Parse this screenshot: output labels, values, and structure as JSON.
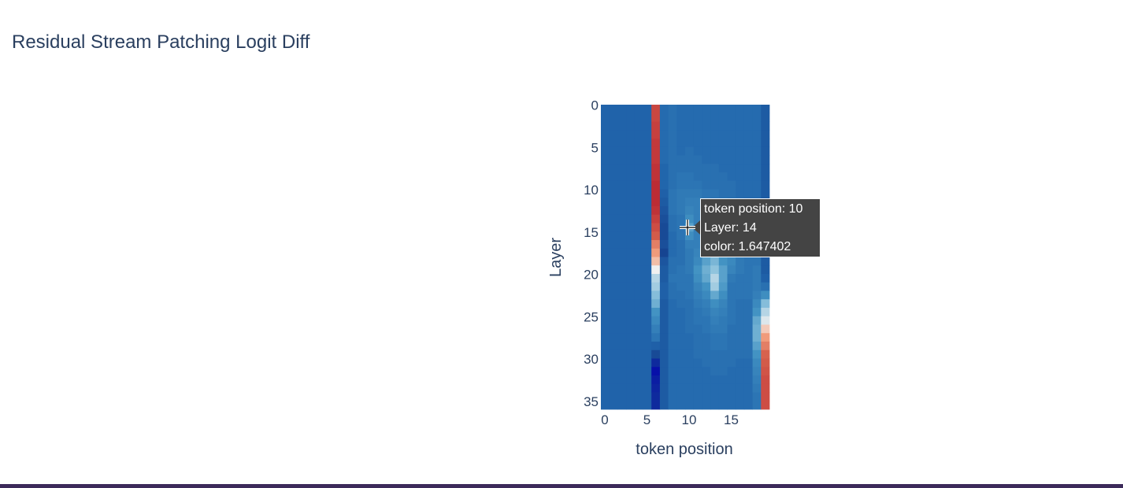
{
  "title": "Residual Stream Patching Logit Diff",
  "chart_data": {
    "type": "heatmap",
    "title": "Residual Stream Patching Logit Diff",
    "xlabel": "token position",
    "ylabel": "Layer",
    "x_range": [
      0,
      19
    ],
    "y_range": [
      0,
      35
    ],
    "x_ticks": [
      "0",
      "5",
      "10",
      "15"
    ],
    "y_ticks": [
      "0",
      "5",
      "10",
      "15",
      "20",
      "25",
      "30",
      "35"
    ],
    "colorscale": "RdBu (reversed)",
    "color_range": [
      -1.0,
      5.0
    ],
    "rows": 36,
    "cols": 20,
    "columns": [
      {
        "x": 6,
        "values": [
          4.3,
          4.3,
          4.4,
          4.4,
          4.5,
          4.5,
          4.5,
          4.6,
          4.6,
          4.7,
          4.7,
          4.7,
          4.6,
          4.4,
          4.2,
          4.0,
          3.6,
          3.3,
          3.0,
          2.6,
          2.3,
          2.2,
          2.0,
          1.8,
          1.4,
          1.2,
          1.0,
          0.8,
          0.4,
          0.0,
          -0.5,
          -0.9,
          -0.7,
          -0.6,
          -0.5,
          -0.5
        ]
      },
      {
        "x": 7,
        "values": [
          0.6,
          0.6,
          0.6,
          0.6,
          0.6,
          0.6,
          0.6,
          0.5,
          0.5,
          0.5,
          0.4,
          0.3,
          0.2,
          0.1,
          0.0,
          0.0,
          0.1,
          -0.1,
          0.2,
          0.3,
          0.3,
          0.4,
          0.4,
          0.3,
          0.3,
          0.3,
          0.3,
          0.3,
          0.3,
          0.3,
          0.3,
          0.3,
          0.3,
          0.3,
          0.3,
          0.3
        ]
      },
      {
        "x": 8,
        "values": [
          0.7,
          0.7,
          0.7,
          0.7,
          0.7,
          0.7,
          0.7,
          0.7,
          0.7,
          0.7,
          0.8,
          0.8,
          0.8,
          0.7,
          0.7,
          0.6,
          0.6,
          0.6,
          0.7,
          0.7,
          0.8,
          0.7,
          0.7,
          0.6,
          0.6,
          0.6,
          0.6,
          0.6,
          0.6,
          0.6,
          0.6,
          0.6,
          0.6,
          0.6,
          0.6,
          0.6
        ]
      },
      {
        "x": 9,
        "values": [
          0.6,
          0.6,
          0.6,
          0.6,
          0.6,
          0.6,
          0.7,
          0.7,
          0.8,
          0.8,
          0.9,
          0.9,
          0.9,
          0.8,
          0.8,
          0.8,
          0.7,
          0.7,
          0.7,
          0.8,
          0.8,
          0.8,
          0.7,
          0.7,
          0.6,
          0.6,
          0.6,
          0.6,
          0.6,
          0.6,
          0.6,
          0.6,
          0.6,
          0.6,
          0.6,
          0.6
        ]
      },
      {
        "x": 10,
        "values": [
          0.6,
          0.6,
          0.6,
          0.6,
          0.6,
          0.7,
          0.7,
          0.7,
          0.8,
          0.8,
          0.9,
          1.0,
          1.1,
          1.3,
          1.6,
          1.3,
          1.0,
          0.9,
          0.9,
          0.9,
          0.8,
          0.8,
          0.8,
          0.7,
          0.7,
          0.7,
          0.7,
          0.6,
          0.6,
          0.6,
          0.6,
          0.6,
          0.6,
          0.6,
          0.6,
          0.6
        ]
      },
      {
        "x": 11,
        "values": [
          0.6,
          0.6,
          0.6,
          0.6,
          0.6,
          0.6,
          0.7,
          0.7,
          0.7,
          0.8,
          0.9,
          1.0,
          1.0,
          1.0,
          1.0,
          1.0,
          1.0,
          1.1,
          1.2,
          1.4,
          1.3,
          1.1,
          1.0,
          0.9,
          0.8,
          0.8,
          0.7,
          0.7,
          0.7,
          0.7,
          0.6,
          0.6,
          0.6,
          0.6,
          0.6,
          0.6
        ]
      },
      {
        "x": 12,
        "values": [
          0.6,
          0.6,
          0.6,
          0.6,
          0.6,
          0.6,
          0.6,
          0.7,
          0.7,
          0.7,
          0.8,
          0.9,
          1.0,
          1.1,
          1.1,
          1.1,
          1.1,
          1.3,
          1.6,
          1.8,
          1.7,
          1.4,
          1.2,
          1.0,
          0.9,
          0.8,
          0.8,
          0.7,
          0.7,
          0.7,
          0.7,
          0.6,
          0.6,
          0.6,
          0.6,
          0.6
        ]
      },
      {
        "x": 13,
        "values": [
          0.6,
          0.6,
          0.6,
          0.6,
          0.6,
          0.6,
          0.6,
          0.7,
          0.7,
          0.7,
          0.8,
          0.8,
          0.9,
          1.0,
          1.0,
          1.0,
          1.1,
          1.4,
          1.9,
          2.1,
          2.3,
          2.2,
          1.7,
          1.3,
          1.1,
          1.0,
          0.9,
          0.8,
          0.8,
          0.7,
          0.7,
          0.7,
          0.6,
          0.6,
          0.6,
          0.6
        ]
      },
      {
        "x": 14,
        "values": [
          0.6,
          0.6,
          0.6,
          0.6,
          0.6,
          0.6,
          0.6,
          0.6,
          0.7,
          0.7,
          0.7,
          0.8,
          0.8,
          0.9,
          0.9,
          1.0,
          1.0,
          1.1,
          1.4,
          1.6,
          1.6,
          1.5,
          1.3,
          1.1,
          1.0,
          0.9,
          0.9,
          0.8,
          0.8,
          0.7,
          0.7,
          0.7,
          0.6,
          0.6,
          0.6,
          0.6
        ]
      },
      {
        "x": 15,
        "values": [
          0.6,
          0.6,
          0.6,
          0.6,
          0.6,
          0.6,
          0.6,
          0.6,
          0.6,
          0.7,
          0.7,
          0.7,
          0.8,
          0.8,
          0.8,
          0.8,
          0.9,
          1.0,
          1.2,
          1.1,
          0.9,
          0.8,
          0.8,
          0.8,
          0.8,
          0.8,
          0.7,
          0.7,
          0.7,
          0.7,
          0.7,
          0.6,
          0.6,
          0.6,
          0.6,
          0.6
        ]
      },
      {
        "x": 16,
        "values": [
          0.6,
          0.6,
          0.6,
          0.6,
          0.6,
          0.6,
          0.6,
          0.6,
          0.6,
          0.6,
          0.6,
          0.7,
          0.7,
          0.7,
          0.7,
          0.7,
          0.8,
          0.8,
          0.9,
          0.9,
          0.8,
          0.8,
          0.8,
          0.7,
          0.7,
          0.7,
          0.7,
          0.7,
          0.7,
          0.7,
          0.6,
          0.6,
          0.6,
          0.6,
          0.6,
          0.6
        ]
      },
      {
        "x": 17,
        "values": [
          0.6,
          0.6,
          0.6,
          0.6,
          0.6,
          0.6,
          0.6,
          0.6,
          0.6,
          0.6,
          0.6,
          0.6,
          0.7,
          0.7,
          0.7,
          0.7,
          0.8,
          0.8,
          0.8,
          0.8,
          0.8,
          0.8,
          0.8,
          0.7,
          0.7,
          0.7,
          0.7,
          0.7,
          0.7,
          0.7,
          0.6,
          0.6,
          0.6,
          0.6,
          0.6,
          0.6
        ]
      },
      {
        "x": 18,
        "values": [
          0.6,
          0.6,
          0.6,
          0.6,
          0.6,
          0.6,
          0.6,
          0.6,
          0.6,
          0.6,
          0.6,
          0.6,
          0.6,
          0.7,
          0.7,
          0.7,
          0.7,
          0.8,
          0.8,
          0.9,
          0.9,
          0.9,
          1.0,
          1.2,
          1.4,
          1.7,
          1.8,
          1.8,
          1.6,
          1.4,
          1.2,
          1.1,
          1.0,
          0.9,
          0.8,
          0.8
        ]
      },
      {
        "x": 19,
        "values": [
          0.3,
          0.3,
          0.3,
          0.3,
          0.3,
          0.3,
          0.3,
          0.3,
          0.3,
          0.3,
          0.3,
          0.3,
          0.3,
          0.3,
          0.3,
          0.3,
          0.3,
          0.3,
          0.3,
          0.3,
          0.4,
          0.7,
          1.3,
          2.0,
          2.3,
          2.5,
          2.9,
          3.3,
          3.6,
          3.9,
          4.0,
          4.1,
          4.2,
          4.2,
          4.2,
          4.2
        ]
      }
    ],
    "default_value": 0.45
  },
  "tooltip": {
    "line1": "token position: 10",
    "line2": "Layer: 14",
    "line3": "color: 1.647402"
  }
}
